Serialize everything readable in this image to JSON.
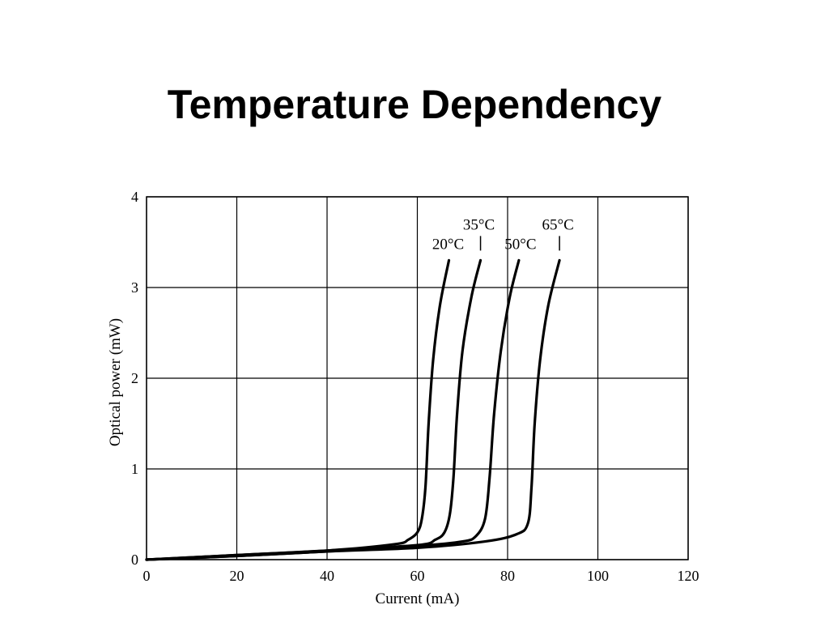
{
  "slide": {
    "title": "Temperature Dependency"
  },
  "chart_data": {
    "type": "line",
    "title": "",
    "xlabel": "Current (mA)",
    "ylabel": "Optical power (mW)",
    "xlim": [
      0,
      120
    ],
    "ylim": [
      0,
      4
    ],
    "xticks": [
      0,
      20,
      40,
      60,
      80,
      100,
      120
    ],
    "yticks": [
      0,
      1,
      2,
      3,
      4
    ],
    "grid": true,
    "legend": "labels-at-curve-tops",
    "line_color": "#000000",
    "series": [
      {
        "name": "20°C",
        "x": [
          0,
          20,
          40,
          55,
          58,
          60,
          61,
          61.8,
          62.5,
          63.5,
          65,
          67
        ],
        "y": [
          0,
          0.05,
          0.1,
          0.17,
          0.22,
          0.3,
          0.45,
          0.8,
          1.5,
          2.2,
          2.8,
          3.3
        ]
      },
      {
        "name": "35°C",
        "x": [
          0,
          20,
          40,
          60,
          64,
          66,
          67.2,
          68,
          68.8,
          70,
          72,
          74
        ],
        "y": [
          0,
          0.05,
          0.1,
          0.16,
          0.22,
          0.3,
          0.5,
          0.9,
          1.6,
          2.3,
          2.9,
          3.3
        ]
      },
      {
        "name": "50°C",
        "x": [
          0,
          20,
          40,
          60,
          70,
          73,
          75,
          76,
          77,
          78.5,
          80.5,
          82.5
        ],
        "y": [
          0,
          0.04,
          0.09,
          0.15,
          0.2,
          0.26,
          0.45,
          0.9,
          1.6,
          2.3,
          2.9,
          3.3
        ]
      },
      {
        "name": "65°C",
        "x": [
          0,
          20,
          40,
          60,
          75,
          82,
          84.5,
          85.3,
          86,
          87.2,
          89,
          91.5
        ],
        "y": [
          0,
          0.04,
          0.09,
          0.13,
          0.2,
          0.28,
          0.4,
          0.8,
          1.5,
          2.2,
          2.8,
          3.3
        ]
      }
    ]
  }
}
